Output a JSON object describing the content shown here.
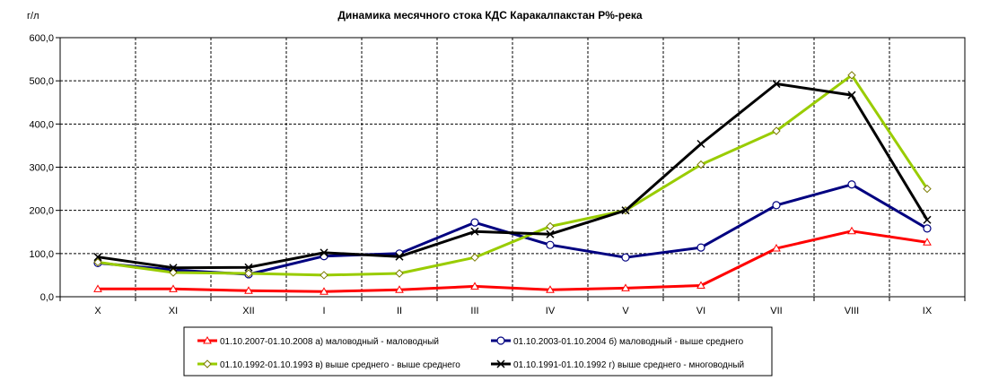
{
  "chart_data": {
    "type": "line",
    "title": "Динамика  месячного  стока  КДС  Каракалпакстан  Р%-река",
    "ylabel": "г/л",
    "xlabel": "",
    "categories": [
      "X",
      "XI",
      "XII",
      "I",
      "II",
      "III",
      "IV",
      "V",
      "VI",
      "VII",
      "VIII",
      "IX"
    ],
    "ylim": [
      0,
      600
    ],
    "ytick_labels": [
      "0,0",
      "100,0",
      "200,0",
      "300,0",
      "400,0",
      "500,0",
      "600,0"
    ],
    "grid": true,
    "legend_position": "bottom",
    "series": [
      {
        "name": "01.10.2007-01.10.2008 а) маловодный - маловодный",
        "color": "#ff0000",
        "marker": "triangle",
        "values": [
          18,
          18,
          14,
          12,
          16,
          24,
          16,
          20,
          26,
          112,
          152,
          126
        ]
      },
      {
        "name": "01.10.2003-01.10.2004 б) маловодный  -  выше  среднего",
        "color": "#000080",
        "marker": "circle",
        "values": [
          78,
          62,
          52,
          94,
          100,
          172,
          120,
          91,
          114,
          212,
          260,
          158
        ]
      },
      {
        "name": "01.10.1992-01.10.1993 в) выше  среднего - выше  среднего",
        "color": "#99cc00",
        "marker": "diamond",
        "values": [
          80,
          56,
          54,
          50,
          54,
          91,
          163,
          200,
          306,
          384,
          513,
          250
        ]
      },
      {
        "name": "01.10.1991-01.10.1992 г) выше  среднего - многоводный",
        "color": "#000000",
        "marker": "x",
        "values": [
          92,
          67,
          68,
          102,
          93,
          151,
          145,
          200,
          354,
          493,
          467,
          178
        ]
      }
    ]
  }
}
